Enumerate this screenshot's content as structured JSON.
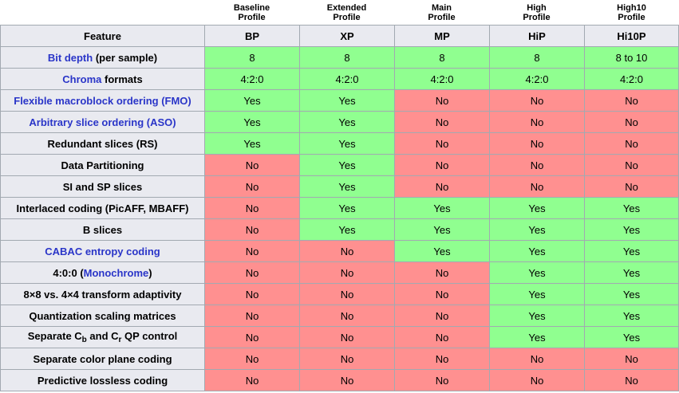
{
  "colors": {
    "yes_bg": "#90ff90",
    "no_bg": "#ff9090",
    "header_bg": "#e9eaf0",
    "border": "#a2a9b1",
    "link_blue": "#2a35c8",
    "text": "#000000"
  },
  "profile_labels": [
    {
      "line1": "Baseline",
      "line2": "Profile"
    },
    {
      "line1": "Extended",
      "line2": "Profile"
    },
    {
      "line1": "Main",
      "line2": "Profile"
    },
    {
      "line1": "High",
      "line2": "Profile"
    },
    {
      "line1": "High10",
      "line2": "Profile"
    }
  ],
  "chart_data": {
    "type": "table",
    "columns": [
      "Feature",
      "BP",
      "XP",
      "MP",
      "HiP",
      "Hi10P"
    ],
    "rows": [
      {
        "feature_text": "Bit depth (per sample)",
        "feature": [
          {
            "text": "Bit depth",
            "type": "link"
          },
          {
            "text": " (per sample)",
            "type": "plain"
          }
        ],
        "values": [
          "8",
          "8",
          "8",
          "8",
          "8 to 10"
        ],
        "states": [
          "yes",
          "yes",
          "yes",
          "yes",
          "yes"
        ]
      },
      {
        "feature_text": "Chroma formats",
        "feature": [
          {
            "text": "Chroma",
            "type": "link"
          },
          {
            "text": " formats",
            "type": "plain"
          }
        ],
        "values": [
          "4:2:0",
          "4:2:0",
          "4:2:0",
          "4:2:0",
          "4:2:0"
        ],
        "states": [
          "yes",
          "yes",
          "yes",
          "yes",
          "yes"
        ]
      },
      {
        "feature_text": "Flexible macroblock ordering (FMO)",
        "feature": [
          {
            "text": "Flexible macroblock ordering (FMO)",
            "type": "link"
          }
        ],
        "values": [
          "Yes",
          "Yes",
          "No",
          "No",
          "No"
        ],
        "states": [
          "yes",
          "yes",
          "no",
          "no",
          "no"
        ]
      },
      {
        "feature_text": "Arbitrary slice ordering (ASO)",
        "feature": [
          {
            "text": "Arbitrary slice ordering (ASO)",
            "type": "link"
          }
        ],
        "values": [
          "Yes",
          "Yes",
          "No",
          "No",
          "No"
        ],
        "states": [
          "yes",
          "yes",
          "no",
          "no",
          "no"
        ]
      },
      {
        "feature_text": "Redundant slices (RS)",
        "feature": [
          {
            "text": "Redundant slices (RS)",
            "type": "plain"
          }
        ],
        "values": [
          "Yes",
          "Yes",
          "No",
          "No",
          "No"
        ],
        "states": [
          "yes",
          "yes",
          "no",
          "no",
          "no"
        ]
      },
      {
        "feature_text": "Data Partitioning",
        "feature": [
          {
            "text": "Data Partitioning",
            "type": "plain"
          }
        ],
        "values": [
          "No",
          "Yes",
          "No",
          "No",
          "No"
        ],
        "states": [
          "no",
          "yes",
          "no",
          "no",
          "no"
        ]
      },
      {
        "feature_text": "SI and SP slices",
        "feature": [
          {
            "text": "SI and SP slices",
            "type": "plain"
          }
        ],
        "values": [
          "No",
          "Yes",
          "No",
          "No",
          "No"
        ],
        "states": [
          "no",
          "yes",
          "no",
          "no",
          "no"
        ]
      },
      {
        "feature_text": "Interlaced coding (PicAFF, MBAFF)",
        "feature": [
          {
            "text": "Interlaced coding (PicAFF, MBAFF)",
            "type": "plain"
          }
        ],
        "values": [
          "No",
          "Yes",
          "Yes",
          "Yes",
          "Yes"
        ],
        "states": [
          "no",
          "yes",
          "yes",
          "yes",
          "yes"
        ]
      },
      {
        "feature_text": "B slices",
        "feature": [
          {
            "text": "B slices",
            "type": "plain"
          }
        ],
        "values": [
          "No",
          "Yes",
          "Yes",
          "Yes",
          "Yes"
        ],
        "states": [
          "no",
          "yes",
          "yes",
          "yes",
          "yes"
        ]
      },
      {
        "feature_text": "CABAC entropy coding",
        "feature": [
          {
            "text": "CABAC entropy coding",
            "type": "link"
          }
        ],
        "values": [
          "No",
          "No",
          "Yes",
          "Yes",
          "Yes"
        ],
        "states": [
          "no",
          "no",
          "yes",
          "yes",
          "yes"
        ]
      },
      {
        "feature_text": "4:0:0 (Monochrome)",
        "feature": [
          {
            "text": "4:0:0 (",
            "type": "plain"
          },
          {
            "text": "Monochrome",
            "type": "link"
          },
          {
            "text": ")",
            "type": "plain"
          }
        ],
        "values": [
          "No",
          "No",
          "No",
          "Yes",
          "Yes"
        ],
        "states": [
          "no",
          "no",
          "no",
          "yes",
          "yes"
        ]
      },
      {
        "feature_text": "8×8 vs. 4×4 transform adaptivity",
        "feature": [
          {
            "text": "8×8 vs. 4×4 transform adaptivity",
            "type": "plain"
          }
        ],
        "values": [
          "No",
          "No",
          "No",
          "Yes",
          "Yes"
        ],
        "states": [
          "no",
          "no",
          "no",
          "yes",
          "yes"
        ]
      },
      {
        "feature_text": "Quantization scaling matrices",
        "feature": [
          {
            "text": "Quantization scaling matrices",
            "type": "plain"
          }
        ],
        "values": [
          "No",
          "No",
          "No",
          "Yes",
          "Yes"
        ],
        "states": [
          "no",
          "no",
          "no",
          "yes",
          "yes"
        ]
      },
      {
        "feature_text": "Separate Cb and Cr QP control",
        "feature": [
          {
            "text": "Separate C",
            "type": "plain"
          },
          {
            "text": "b",
            "type": "sub"
          },
          {
            "text": " and C",
            "type": "plain"
          },
          {
            "text": "r",
            "type": "sub"
          },
          {
            "text": " QP control",
            "type": "plain"
          }
        ],
        "values": [
          "No",
          "No",
          "No",
          "Yes",
          "Yes"
        ],
        "states": [
          "no",
          "no",
          "no",
          "yes",
          "yes"
        ]
      },
      {
        "feature_text": "Separate color plane coding",
        "feature": [
          {
            "text": "Separate color plane coding",
            "type": "plain"
          }
        ],
        "values": [
          "No",
          "No",
          "No",
          "No",
          "No"
        ],
        "states": [
          "no",
          "no",
          "no",
          "no",
          "no"
        ]
      },
      {
        "feature_text": "Predictive lossless coding",
        "feature": [
          {
            "text": "Predictive lossless coding",
            "type": "plain"
          }
        ],
        "values": [
          "No",
          "No",
          "No",
          "No",
          "No"
        ],
        "states": [
          "no",
          "no",
          "no",
          "no",
          "no"
        ]
      }
    ]
  }
}
